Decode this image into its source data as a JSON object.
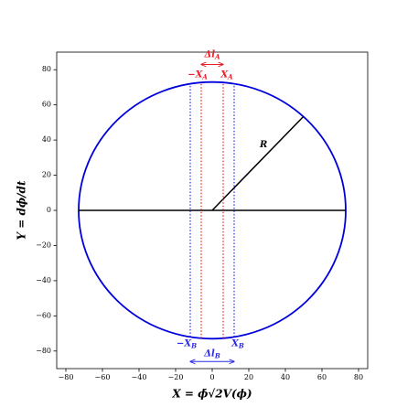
{
  "chart_data": {
    "type": "circle",
    "xlabel": "X = ϕ̇√2V(ϕ)",
    "ylabel": "Y = dϕ/dt",
    "xlim": [
      -85,
      85
    ],
    "ylim": [
      -90,
      90
    ],
    "xticks": [
      {
        "value": -80,
        "label": "−80"
      },
      {
        "value": -60,
        "label": "−60"
      },
      {
        "value": -40,
        "label": "−40"
      },
      {
        "value": -20,
        "label": "−20"
      },
      0,
      20,
      40,
      60,
      80
    ],
    "yticks": [
      {
        "value": -80,
        "label": "−80"
      },
      {
        "value": -60,
        "label": "−60"
      },
      {
        "value": -40,
        "label": "−40"
      },
      {
        "value": -20,
        "label": "−20"
      },
      0,
      20,
      40,
      60,
      80
    ],
    "circle": {
      "center": [
        0,
        0
      ],
      "radius": 73,
      "color": "#0000dd"
    },
    "segments": [
      {
        "x": [
          -73,
          73
        ],
        "y": [
          0,
          0
        ],
        "color": "#000000"
      },
      {
        "x": [
          0,
          50
        ],
        "y": [
          0,
          53.5
        ],
        "color": "#000000",
        "name": "R"
      }
    ],
    "vlines": [
      {
        "x": -6,
        "y": [
          -72.7,
          72.7
        ],
        "color": "#e8202a",
        "label": "−X",
        "sub": "A",
        "side": "top"
      },
      {
        "x": 6,
        "y": [
          -72.7,
          72.7
        ],
        "color": "#e8202a",
        "label": "X",
        "sub": "A",
        "side": "top"
      },
      {
        "x": -12,
        "y": [
          -72,
          72
        ],
        "color": "#2a2ae8",
        "label": "−X",
        "sub": "B",
        "side": "bottom"
      },
      {
        "x": 12,
        "y": [
          -72,
          72
        ],
        "color": "#2a2ae8",
        "label": "X",
        "sub": "B",
        "side": "bottom"
      }
    ],
    "arrows": [
      {
        "x": [
          -6,
          6
        ],
        "y": 83,
        "color": "#e8202a",
        "label": "Δl",
        "sub": "A",
        "side": "top"
      },
      {
        "x": [
          -12,
          12
        ],
        "y": -86,
        "color": "#2a2ae8",
        "label": "Δl",
        "sub": "B",
        "side": "bottom"
      }
    ]
  }
}
